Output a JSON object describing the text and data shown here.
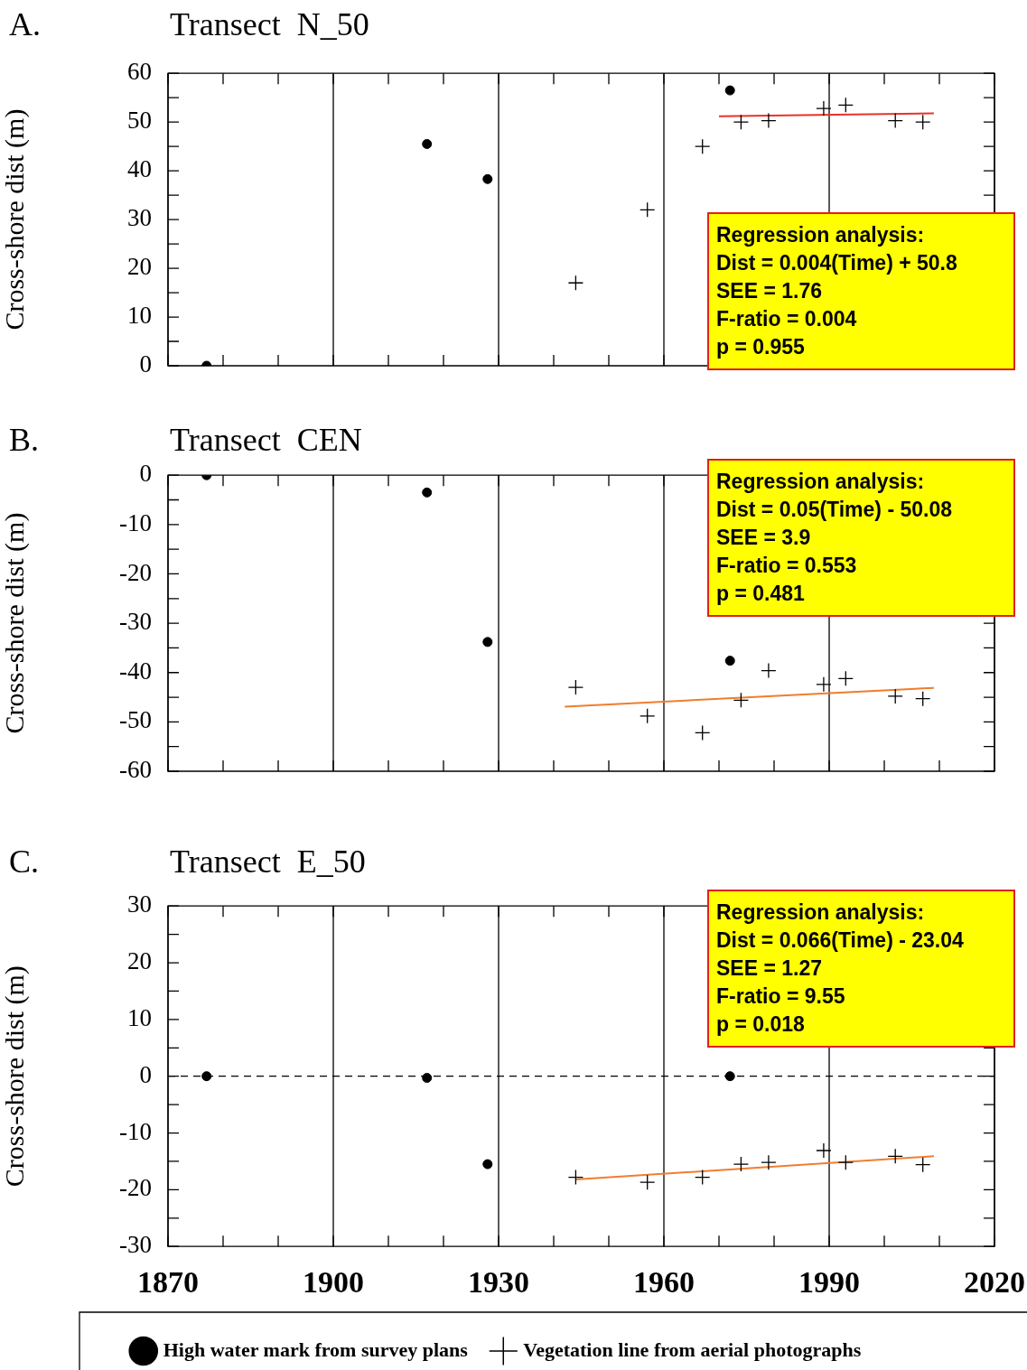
{
  "chart_data": [
    {
      "type": "scatter",
      "title": "A.",
      "subtitle": "Transect  N_50",
      "ylabel": "Cross-shore dist (m)",
      "xlim": [
        1870,
        2020
      ],
      "ylim": [
        0,
        60
      ],
      "xticks": [
        1870,
        {
          "value": 1880,
          "label": null
        },
        {
          "value": 1890,
          "label": null
        },
        1900,
        {
          "value": 1910,
          "label": null
        },
        {
          "value": 1920,
          "label": null
        },
        1930,
        {
          "value": 1940,
          "label": null
        },
        {
          "value": 1950,
          "label": null
        },
        1960,
        {
          "value": 1970,
          "label": null
        },
        {
          "value": 1980,
          "label": null
        },
        1990,
        {
          "value": 2000,
          "label": null
        },
        {
          "value": 2010,
          "label": null
        },
        2020
      ],
      "yticks": [
        0,
        {
          "value": 5,
          "label": null
        },
        10,
        {
          "value": 15,
          "label": null
        },
        20,
        {
          "value": 25,
          "label": null
        },
        30,
        {
          "value": 35,
          "label": null
        },
        40,
        {
          "value": 45,
          "label": null
        },
        50,
        {
          "value": 55,
          "label": null
        },
        60
      ],
      "tick_labels": "y",
      "grid": "x",
      "series": [
        {
          "color": "#000000",
          "marker": "circle",
          "x": [
            1877,
            1917,
            1928,
            1972
          ],
          "values": [
            0,
            45.5,
            38.3,
            56.5
          ]
        },
        {
          "color": "#000000",
          "marker": "cross",
          "x": [
            1944,
            1957,
            1967,
            1974,
            1979,
            1989,
            1993,
            2002,
            2007
          ],
          "values": [
            17,
            32,
            45,
            50,
            50.3,
            52.8,
            53.5,
            50.3,
            50
          ]
        },
        {
          "type": "line",
          "color": "#e8322a",
          "marker": "none",
          "x": [
            1970,
            2009
          ],
          "values": [
            51.2,
            51.8
          ]
        }
      ],
      "annotations": [
        "Regression analysis:",
        "Dist = 0.004(Time) + 50.8",
        "SEE = 1.76",
        "F-ratio = 0.004",
        "p = 0.955"
      ]
    },
    {
      "type": "scatter",
      "title": "B.",
      "subtitle": "Transect  CEN",
      "ylabel": "Cross-shore dist (m)",
      "xlim": [
        1870,
        2020
      ],
      "ylim": [
        -60,
        0
      ],
      "xticks": [
        1870,
        {
          "value": 1880,
          "label": null
        },
        {
          "value": 1890,
          "label": null
        },
        1900,
        {
          "value": 1910,
          "label": null
        },
        {
          "value": 1920,
          "label": null
        },
        1930,
        {
          "value": 1940,
          "label": null
        },
        {
          "value": 1950,
          "label": null
        },
        1960,
        {
          "value": 1970,
          "label": null
        },
        {
          "value": 1980,
          "label": null
        },
        1990,
        {
          "value": 2000,
          "label": null
        },
        {
          "value": 2010,
          "label": null
        },
        2020
      ],
      "yticks": [
        -60,
        {
          "value": -55,
          "label": null
        },
        -50,
        {
          "value": -45,
          "label": null
        },
        -40,
        {
          "value": -35,
          "label": null
        },
        -30,
        {
          "value": -25,
          "label": null
        },
        -20,
        {
          "value": -15,
          "label": null
        },
        -10,
        {
          "value": -5,
          "label": null
        },
        0
      ],
      "tick_labels": "y",
      "grid": "x",
      "series": [
        {
          "color": "#000000",
          "marker": "circle",
          "x": [
            1877,
            1917,
            1928,
            1972
          ],
          "values": [
            0,
            -3.5,
            -33.8,
            -37.6
          ]
        },
        {
          "color": "#000000",
          "marker": "cross",
          "x": [
            1944,
            1957,
            1967,
            1974,
            1979,
            1989,
            1993,
            2002,
            2007
          ],
          "values": [
            -43,
            -48.8,
            -52.2,
            -45.6,
            -39.6,
            -42.4,
            -41.2,
            -44.8,
            -45.3
          ]
        },
        {
          "type": "line",
          "color": "#f07d2e",
          "marker": "none",
          "x": [
            1942,
            2009
          ],
          "values": [
            -46.9,
            -43.1
          ]
        }
      ],
      "annotations": [
        "Regression analysis:",
        "Dist = 0.05(Time) - 50.08",
        "SEE = 3.9",
        "F-ratio = 0.553",
        "p = 0.481"
      ]
    },
    {
      "type": "scatter",
      "title": "C.",
      "subtitle": "Transect  E_50",
      "ylabel": "Cross-shore dist (m)",
      "xlim": [
        1870,
        2020
      ],
      "ylim": [
        -30,
        30
      ],
      "xticks": [
        1870,
        {
          "value": 1880,
          "label": null
        },
        {
          "value": 1890,
          "label": null
        },
        1900,
        {
          "value": 1910,
          "label": null
        },
        {
          "value": 1920,
          "label": null
        },
        1930,
        {
          "value": 1940,
          "label": null
        },
        {
          "value": 1950,
          "label": null
        },
        1960,
        {
          "value": 1970,
          "label": null
        },
        {
          "value": 1980,
          "label": null
        },
        1990,
        {
          "value": 2000,
          "label": null
        },
        {
          "value": 2010,
          "label": null
        },
        2020
      ],
      "yticks": [
        -30,
        {
          "value": -25,
          "label": null
        },
        -20,
        {
          "value": -15,
          "label": null
        },
        -10,
        {
          "value": -5,
          "label": null
        },
        0,
        {
          "value": 5,
          "label": null
        },
        10,
        {
          "value": 15,
          "label": null
        },
        20,
        {
          "value": 25,
          "label": null
        },
        30
      ],
      "grid": "x",
      "legend": "bottom",
      "ref_lines": [
        {
          "axis": "y",
          "value": 0,
          "color": "#000000",
          "line_style": "dashed"
        }
      ],
      "series": [
        {
          "name": "High water mark from survey plans",
          "color": "#000000",
          "marker": "circle",
          "x": [
            1877,
            1917,
            1928,
            1972
          ],
          "values": [
            0,
            -0.3,
            -15.5,
            0
          ]
        },
        {
          "name": "Vegetation line from aerial photographs",
          "color": "#000000",
          "marker": "cross",
          "x": [
            1944,
            1957,
            1967,
            1974,
            1979,
            1989,
            1993,
            2002,
            2007
          ],
          "values": [
            -17.8,
            -18.7,
            -17.8,
            -15.5,
            -15.2,
            -13.1,
            -15.2,
            -14.1,
            -15.6
          ]
        },
        {
          "type": "line",
          "color": "#f07d2e",
          "marker": "none",
          "x": [
            1944,
            2009
          ],
          "values": [
            -18.2,
            -14.1
          ]
        }
      ],
      "annotations": [
        "Regression analysis:",
        "Dist = 0.066(Time) - 23.04",
        "SEE = 1.27",
        "F-ratio = 9.55",
        "p = 0.018"
      ]
    }
  ]
}
